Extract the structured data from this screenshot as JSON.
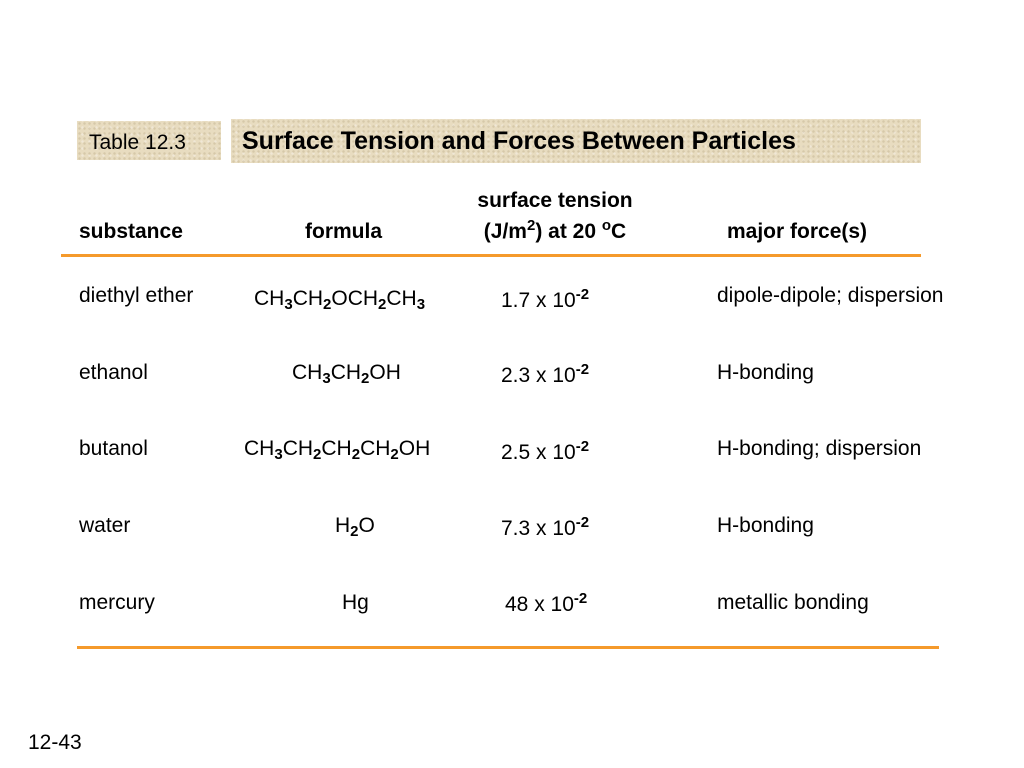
{
  "table_label": "Table 12.3",
  "title": "Surface Tension and Forces Between Particles",
  "headers": {
    "substance": "substance",
    "formula": "formula",
    "surface_tension_line1": "surface tension",
    "surface_tension_line2_pre": "(J/m",
    "surface_tension_line2_sup1": "2",
    "surface_tension_line2_mid": ") at 20 ",
    "surface_tension_line2_sup2": "o",
    "surface_tension_line2_post": "C",
    "major_forces": "major force(s)"
  },
  "rows": [
    {
      "substance": "diethyl ether",
      "formula": [
        [
          "CH",
          ""
        ],
        [
          "3",
          "sub"
        ],
        [
          "CH",
          ""
        ],
        [
          "2",
          "sub"
        ],
        [
          "OCH",
          ""
        ],
        [
          "2",
          "sub"
        ],
        [
          "CH",
          ""
        ],
        [
          "3",
          "sub"
        ]
      ],
      "tension_base": "1.7 x 10",
      "tension_exp": "-2",
      "force": "dipole-dipole; dispersion"
    },
    {
      "substance": "ethanol",
      "formula": [
        [
          "CH",
          ""
        ],
        [
          "3",
          "sub"
        ],
        [
          "CH",
          ""
        ],
        [
          "2",
          "sub"
        ],
        [
          "OH",
          ""
        ]
      ],
      "tension_base": "2.3 x 10",
      "tension_exp": "-2",
      "force": "H-bonding"
    },
    {
      "substance": "butanol",
      "formula": [
        [
          "CH",
          ""
        ],
        [
          "3",
          "sub"
        ],
        [
          "CH",
          ""
        ],
        [
          "2",
          "sub"
        ],
        [
          "CH",
          ""
        ],
        [
          "2",
          "sub"
        ],
        [
          "CH",
          ""
        ],
        [
          "2",
          "sub"
        ],
        [
          "OH",
          ""
        ]
      ],
      "tension_base": "2.5 x 10",
      "tension_exp": "-2",
      "force": "H-bonding; dispersion"
    },
    {
      "substance": "water",
      "formula": [
        [
          "H",
          ""
        ],
        [
          "2",
          "sub"
        ],
        [
          "O",
          ""
        ]
      ],
      "tension_base": "7.3 x 10",
      "tension_exp": "-2",
      "force": "H-bonding"
    },
    {
      "substance": "mercury",
      "formula": [
        [
          "Hg",
          ""
        ]
      ],
      "tension_base": "48 x 10",
      "tension_exp": "-2",
      "force": "metallic bonding"
    }
  ],
  "colors": {
    "rule": "#f59a2b",
    "label_bg": "#e8dcc0"
  },
  "page_number": "12-43"
}
